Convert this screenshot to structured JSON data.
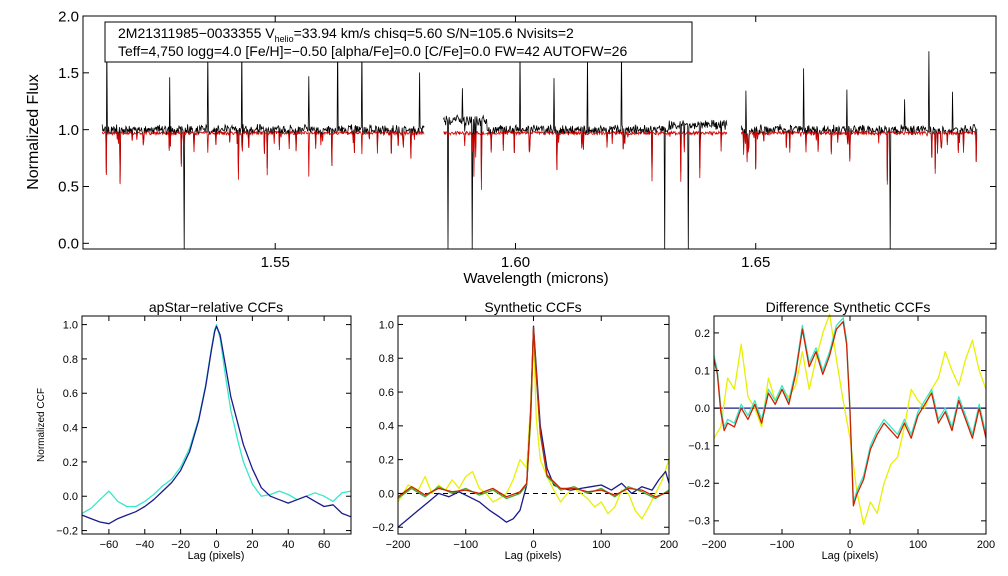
{
  "colors": {
    "background": "#ffffff",
    "spectrum_observed": "#000000",
    "spectrum_model": "#d10000",
    "ccf_cyan": "#38e8c8",
    "ccf_navy": "#1a1a8c",
    "ccf_red": "#cc2200",
    "ccf_yellow": "#e8f000",
    "ccf_green": "#44aa33",
    "ccf_blue": "#2222cc",
    "zero_line": "#000000"
  },
  "chart_data": [
    {
      "id": "spectrum",
      "type": "line",
      "xlabel": "Wavelength (microns)",
      "ylabel": "Normalized Flux",
      "xlim": [
        1.51,
        1.7
      ],
      "ylim": [
        -0.05,
        2.0
      ],
      "xticks": [
        "1.55",
        "1.60",
        "1.65"
      ],
      "xtick_values": [
        1.55,
        1.6,
        1.65
      ],
      "yticks": [
        "0.0",
        "0.5",
        "1.0",
        "1.5",
        "2.0"
      ],
      "ytick_values": [
        0,
        0.5,
        1.0,
        1.5,
        2.0
      ],
      "annotation": {
        "line1_prefix": "2M21311985−0033355  V",
        "line1_sub": "helio",
        "line1_suffix": "=33.94 km/s  chisq=5.60  S/N=105.6  Nvisits=2",
        "line2": "Teff=4,750 logg=4.0 [Fe/H]=−0.50 [alpha/Fe]=0.0 [C/Fe]=0.0 FW=42 AUTOFW=26"
      },
      "chips": [
        [
          1.514,
          1.581
        ],
        [
          1.585,
          1.644
        ],
        [
          1.647,
          1.696
        ]
      ],
      "strong_absorption": [
        1.531,
        1.586,
        1.591,
        1.631,
        1.636,
        1.678
      ],
      "emission_spikes": [
        1.515,
        1.528,
        1.536,
        1.543,
        1.557,
        1.563,
        1.568,
        1.58,
        1.589,
        1.601,
        1.608,
        1.615,
        1.622,
        1.648,
        1.66,
        1.669,
        1.681,
        1.686,
        1.691
      ]
    },
    {
      "id": "apstar-ccf",
      "type": "line",
      "title": "apStar−relative CCFs",
      "xlabel": "Lag (pixels)",
      "ylabel": "Normalized CCF",
      "xlim": [
        -75,
        75
      ],
      "ylim": [
        -0.22,
        1.05
      ],
      "xticks": [
        "−60",
        "−40",
        "−20",
        "0",
        "20",
        "40",
        "60"
      ],
      "xtick_values": [
        -60,
        -40,
        -20,
        0,
        20,
        40,
        60
      ],
      "yticks": [
        "−0.2",
        "0.0",
        "0.2",
        "0.4",
        "0.6",
        "0.8",
        "1.0"
      ],
      "ytick_values": [
        -0.2,
        0,
        0.2,
        0.4,
        0.6,
        0.8,
        1.0
      ],
      "series": [
        {
          "name": "cyan",
          "color": "#38e8c8",
          "x": [
            -75,
            -70,
            -65,
            -60,
            -55,
            -50,
            -45,
            -40,
            -35,
            -30,
            -25,
            -20,
            -15,
            -10,
            -6,
            -3,
            -1,
            0,
            2,
            5,
            8,
            12,
            15,
            20,
            25,
            30,
            35,
            40,
            45,
            50,
            55,
            60,
            65,
            70,
            75
          ],
          "y": [
            -0.1,
            -0.07,
            -0.02,
            0.03,
            -0.03,
            -0.06,
            -0.06,
            -0.03,
            0.01,
            0.06,
            0.1,
            0.17,
            0.28,
            0.45,
            0.65,
            0.85,
            0.97,
            1.0,
            0.92,
            0.7,
            0.5,
            0.32,
            0.2,
            0.07,
            0.0,
            0.01,
            0.03,
            0.01,
            -0.02,
            0.0,
            0.02,
            0.0,
            -0.03,
            0.02,
            0.03
          ]
        },
        {
          "name": "navy",
          "color": "#1a1a8c",
          "x": [
            -75,
            -70,
            -65,
            -60,
            -55,
            -50,
            -45,
            -40,
            -35,
            -30,
            -25,
            -20,
            -15,
            -10,
            -6,
            -3,
            -1,
            0,
            2,
            5,
            8,
            12,
            15,
            20,
            25,
            30,
            35,
            40,
            45,
            50,
            55,
            60,
            65,
            70,
            75
          ],
          "y": [
            -0.11,
            -0.13,
            -0.15,
            -0.16,
            -0.13,
            -0.11,
            -0.09,
            -0.06,
            -0.02,
            0.03,
            0.08,
            0.15,
            0.26,
            0.44,
            0.64,
            0.84,
            0.96,
            0.99,
            0.94,
            0.76,
            0.58,
            0.42,
            0.3,
            0.16,
            0.05,
            0.0,
            -0.02,
            -0.04,
            -0.02,
            0.0,
            -0.03,
            -0.06,
            -0.05,
            -0.1,
            -0.12
          ]
        }
      ]
    },
    {
      "id": "synthetic-ccf",
      "type": "line",
      "title": "Synthetic CCFs",
      "xlabel": "Lag (pixels)",
      "xlim": [
        -200,
        200
      ],
      "ylim": [
        -0.24,
        1.05
      ],
      "xticks": [
        "−200",
        "−100",
        "0",
        "100",
        "200"
      ],
      "xtick_values": [
        -200,
        -100,
        0,
        100,
        200
      ],
      "yticks": [
        "−0.2",
        "0.0",
        "0.2",
        "0.4",
        "0.6",
        "0.8",
        "1.0"
      ],
      "ytick_values": [
        -0.2,
        0,
        0.2,
        0.4,
        0.6,
        0.8,
        1.0
      ],
      "zero_line": true,
      "series": [
        {
          "name": "yellow",
          "color": "#e8f000",
          "x": [
            -200,
            -185,
            -170,
            -160,
            -150,
            -140,
            -130,
            -120,
            -110,
            -100,
            -90,
            -80,
            -70,
            -60,
            -50,
            -40,
            -30,
            -20,
            -10,
            -4,
            0,
            4,
            10,
            20,
            30,
            40,
            50,
            60,
            70,
            80,
            90,
            100,
            110,
            120,
            130,
            140,
            150,
            160,
            170,
            180,
            190,
            200
          ],
          "y": [
            -0.05,
            0.05,
            0.02,
            0.1,
            0.0,
            0.05,
            0.02,
            0.08,
            0.03,
            0.1,
            0.13,
            0.03,
            0.0,
            -0.05,
            -0.03,
            0.0,
            0.08,
            0.2,
            0.15,
            0.55,
            0.97,
            0.45,
            0.2,
            0.1,
            0.02,
            -0.05,
            0.0,
            0.03,
            0.0,
            -0.03,
            -0.08,
            -0.05,
            -0.12,
            -0.08,
            0.02,
            0.0,
            -0.1,
            -0.15,
            -0.08,
            0.0,
            0.08,
            0.2
          ]
        },
        {
          "name": "navy",
          "color": "#1a1a8c",
          "x": [
            -200,
            -185,
            -170,
            -155,
            -140,
            -125,
            -110,
            -95,
            -80,
            -65,
            -50,
            -40,
            -30,
            -20,
            -10,
            -4,
            0,
            4,
            10,
            20,
            30,
            40,
            55,
            70,
            85,
            100,
            115,
            130,
            145,
            160,
            175,
            185,
            195,
            200
          ],
          "y": [
            -0.2,
            -0.15,
            -0.1,
            -0.05,
            0.0,
            -0.02,
            0.01,
            -0.02,
            -0.05,
            -0.1,
            -0.14,
            -0.17,
            -0.15,
            -0.1,
            0.05,
            0.5,
            0.99,
            0.75,
            0.4,
            0.15,
            0.05,
            0.03,
            0.02,
            0.03,
            0.04,
            0.05,
            0.02,
            0.06,
            0.0,
            0.04,
            0.02,
            0.08,
            0.13,
            0.06
          ]
        },
        {
          "name": "green",
          "color": "#44aa33",
          "x": [
            -200,
            -180,
            -160,
            -140,
            -120,
            -100,
            -80,
            -60,
            -40,
            -20,
            -10,
            -4,
            0,
            4,
            10,
            20,
            40,
            60,
            80,
            100,
            120,
            140,
            160,
            180,
            200
          ],
          "y": [
            -0.03,
            0.03,
            -0.02,
            0.04,
            0.0,
            0.03,
            -0.01,
            0.02,
            -0.03,
            0.0,
            0.05,
            0.45,
            0.97,
            0.7,
            0.35,
            0.1,
            0.02,
            0.04,
            0.0,
            0.03,
            -0.02,
            0.04,
            0.01,
            -0.03,
            0.02
          ]
        },
        {
          "name": "red",
          "color": "#cc2200",
          "x": [
            -200,
            -180,
            -160,
            -140,
            -120,
            -100,
            -80,
            -60,
            -40,
            -20,
            -10,
            -4,
            0,
            4,
            10,
            20,
            40,
            60,
            80,
            100,
            120,
            140,
            160,
            180,
            200
          ],
          "y": [
            -0.02,
            0.04,
            -0.01,
            0.03,
            0.01,
            0.02,
            0.0,
            0.03,
            -0.02,
            0.01,
            0.06,
            0.48,
            0.98,
            0.72,
            0.36,
            0.11,
            0.03,
            0.03,
            0.01,
            0.02,
            -0.01,
            0.03,
            0.02,
            -0.02,
            0.01
          ]
        }
      ]
    },
    {
      "id": "difference-ccf",
      "type": "line",
      "title": "Difference Synthetic CCFs",
      "xlabel": "Lag (pixels)",
      "xlim": [
        -200,
        200
      ],
      "ylim": [
        -0.335,
        0.245
      ],
      "xticks": [
        "−200",
        "−100",
        "0",
        "100",
        "200"
      ],
      "xtick_values": [
        -200,
        -100,
        0,
        100,
        200
      ],
      "yticks": [
        "−0.3",
        "−0.2",
        "−0.1",
        "0.0",
        "0.1",
        "0.2"
      ],
      "ytick_values": [
        -0.3,
        -0.2,
        -0.1,
        0,
        0.1,
        0.2
      ],
      "series": [
        {
          "name": "navy-flat",
          "color": "#1a1a8c",
          "x": [
            -200,
            200
          ],
          "y": [
            0.0,
            0.0
          ]
        },
        {
          "name": "yellow",
          "color": "#e8f000",
          "x": [
            -200,
            -190,
            -180,
            -170,
            -160,
            -150,
            -140,
            -130,
            -120,
            -110,
            -100,
            -90,
            -80,
            -70,
            -60,
            -50,
            -40,
            -30,
            -20,
            -10,
            0,
            10,
            20,
            30,
            40,
            50,
            60,
            70,
            80,
            90,
            100,
            110,
            120,
            130,
            140,
            150,
            160,
            170,
            180,
            190,
            200
          ],
          "y": [
            -0.08,
            -0.05,
            0.08,
            0.05,
            0.17,
            0.03,
            0.0,
            -0.05,
            0.08,
            0.02,
            0.05,
            0.03,
            0.06,
            0.15,
            0.05,
            0.13,
            0.2,
            0.25,
            0.13,
            0.02,
            -0.08,
            -0.22,
            -0.31,
            -0.25,
            -0.28,
            -0.2,
            -0.15,
            -0.13,
            -0.05,
            0.05,
            0.02,
            0.0,
            0.05,
            0.08,
            0.15,
            0.1,
            0.06,
            0.13,
            0.18,
            0.1,
            0.05
          ]
        },
        {
          "name": "cyan",
          "color": "#38e8c8",
          "x": [
            -200,
            -195,
            -190,
            -185,
            -180,
            -170,
            -160,
            -150,
            -140,
            -130,
            -120,
            -110,
            -100,
            -90,
            -80,
            -70,
            -60,
            -50,
            -40,
            -30,
            -20,
            -10,
            -5,
            0,
            5,
            10,
            20,
            30,
            40,
            50,
            60,
            70,
            80,
            90,
            100,
            110,
            120,
            130,
            140,
            150,
            160,
            170,
            180,
            190,
            200
          ],
          "y": [
            0.14,
            0.1,
            0.0,
            -0.05,
            -0.03,
            -0.04,
            0.01,
            -0.02,
            0.02,
            -0.03,
            0.05,
            0.02,
            0.06,
            0.02,
            0.1,
            0.22,
            0.12,
            0.16,
            0.1,
            0.15,
            0.22,
            0.24,
            0.18,
            0.0,
            -0.25,
            -0.22,
            -0.18,
            -0.1,
            -0.06,
            -0.03,
            -0.05,
            -0.07,
            -0.03,
            -0.07,
            -0.01,
            0.02,
            0.05,
            -0.03,
            0.0,
            -0.05,
            0.03,
            -0.02,
            -0.07,
            0.01,
            -0.07
          ]
        },
        {
          "name": "red",
          "color": "#cc2200",
          "x": [
            -200,
            -195,
            -190,
            -185,
            -180,
            -170,
            -160,
            -150,
            -140,
            -130,
            -120,
            -110,
            -100,
            -90,
            -80,
            -70,
            -60,
            -50,
            -40,
            -30,
            -20,
            -10,
            -5,
            0,
            5,
            10,
            20,
            30,
            40,
            50,
            60,
            70,
            80,
            90,
            100,
            110,
            120,
            130,
            140,
            150,
            160,
            170,
            180,
            190,
            200
          ],
          "y": [
            0.13,
            0.09,
            -0.01,
            -0.06,
            -0.04,
            -0.05,
            0.0,
            -0.03,
            0.01,
            -0.04,
            0.04,
            0.01,
            0.05,
            0.01,
            0.09,
            0.21,
            0.11,
            0.15,
            0.09,
            0.14,
            0.21,
            0.23,
            0.17,
            -0.01,
            -0.26,
            -0.23,
            -0.19,
            -0.11,
            -0.07,
            -0.04,
            -0.06,
            -0.08,
            -0.04,
            -0.08,
            -0.02,
            0.01,
            0.04,
            -0.04,
            -0.01,
            -0.06,
            0.02,
            -0.03,
            -0.08,
            0.0,
            -0.08
          ]
        }
      ]
    }
  ]
}
